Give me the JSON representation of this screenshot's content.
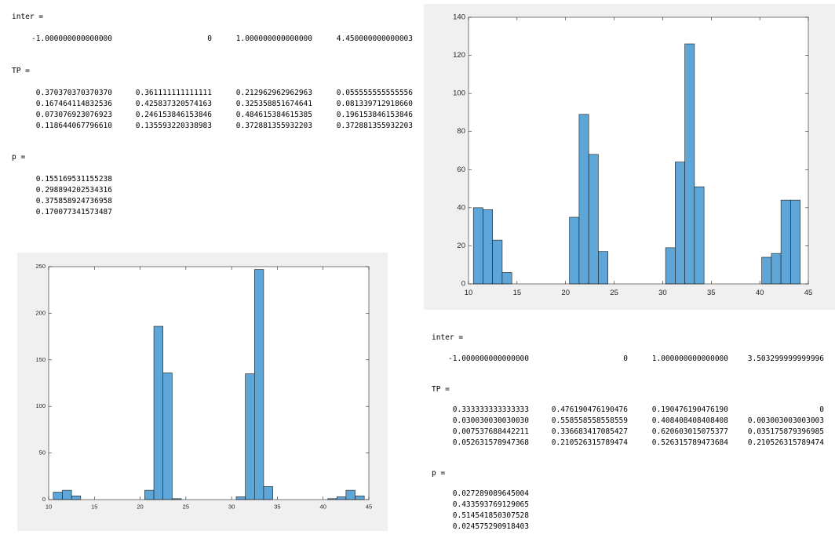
{
  "console": [
    {
      "inter_label": "inter =",
      "inter": [
        "-1.000000000000000",
        "0",
        "1.000000000000000",
        "4.450000000000003"
      ],
      "tp_label": "TP =",
      "tp": [
        [
          "0.370370370370370",
          "0.361111111111111",
          "0.212962962962963",
          "0.055555555555556"
        ],
        [
          "0.167464114832536",
          "0.425837320574163",
          "0.325358851674641",
          "0.081339712918660"
        ],
        [
          "0.073076923076923",
          "0.246153846153846",
          "0.484615384615385",
          "0.196153846153846"
        ],
        [
          "0.118644067796610",
          "0.135593220338983",
          "0.372881355932203",
          "0.372881355932203"
        ]
      ],
      "p_label": "p =",
      "p": [
        "0.155169531155238",
        "0.298894202534316",
        "0.375858924736958",
        "0.170077341573487"
      ]
    },
    {
      "inter_label": "inter =",
      "inter": [
        "-1.000000000000000",
        "0",
        "1.000000000000000",
        "3.503299999999996"
      ],
      "tp_label": "TP =",
      "tp": [
        [
          "0.333333333333333",
          "0.476190476190476",
          "0.190476190476190",
          "0"
        ],
        [
          "0.030030030030030",
          "0.558558558558559",
          "0.408408408408408",
          "0.003003003003003"
        ],
        [
          "0.007537688442211",
          "0.336683417085427",
          "0.620603015075377",
          "0.035175879396985"
        ],
        [
          "0.052631578947368",
          "0.210526315789474",
          "0.526315789473684",
          "0.210526315789474"
        ]
      ],
      "p_label": "p =",
      "p": [
        "0.027289089645004",
        "0.433593769129065",
        "0.514541850307528",
        "0.024575290918403"
      ]
    }
  ],
  "chart_data": [
    {
      "type": "histogram",
      "bins": [
        10.5,
        11.5,
        12.5,
        13.5,
        14.5,
        15.5,
        16.5,
        17.5,
        18.5,
        19.5,
        20.5,
        21.5,
        22.5,
        23.5,
        24.5,
        25.5,
        26.5,
        27.5,
        28.5,
        29.5,
        30.5,
        31.5,
        32.5,
        33.5,
        34.5,
        35.5,
        36.5,
        37.5,
        38.5,
        39.5,
        40.5,
        41.5,
        42.5,
        43.5,
        44.5
      ],
      "values": [
        8,
        10,
        4,
        0,
        0,
        0,
        0,
        0,
        0,
        0,
        10,
        186,
        136,
        1,
        0,
        0,
        0,
        0,
        0,
        0,
        3,
        135,
        247,
        14,
        0,
        0,
        0,
        0,
        0,
        0,
        1,
        3,
        10,
        4
      ],
      "color": "#5ea6d8",
      "xlim": [
        10,
        45
      ],
      "ylim": [
        0,
        250
      ],
      "xticks": [
        10,
        15,
        20,
        25,
        30,
        35,
        40,
        45
      ],
      "yticks": [
        0,
        50,
        100,
        150,
        200,
        250
      ]
    },
    {
      "type": "histogram",
      "bins": [
        10.5,
        11.49,
        12.48,
        13.47,
        14.46,
        15.45,
        16.44,
        17.43,
        18.42,
        19.41,
        20.4,
        21.39,
        22.38,
        23.37,
        24.36,
        25.35,
        26.34,
        27.33,
        28.32,
        29.31,
        30.3,
        31.29,
        32.28,
        33.27,
        34.26,
        35.25,
        36.24,
        37.23,
        38.22,
        39.21,
        40.2,
        41.19,
        42.18,
        43.17,
        44.16
      ],
      "values": [
        40,
        39,
        23,
        6,
        0,
        0,
        0,
        0,
        0,
        0,
        35,
        89,
        68,
        17,
        0,
        0,
        0,
        0,
        0,
        0,
        19,
        64,
        126,
        51,
        0,
        0,
        0,
        0,
        0,
        0,
        14,
        16,
        44,
        44
      ],
      "color": "#5ea6d8",
      "xlim": [
        10,
        45
      ],
      "ylim": [
        0,
        140
      ],
      "xticks": [
        10,
        15,
        20,
        25,
        30,
        35,
        40,
        45
      ],
      "yticks": [
        0,
        20,
        40,
        60,
        80,
        100,
        120,
        140
      ]
    }
  ]
}
